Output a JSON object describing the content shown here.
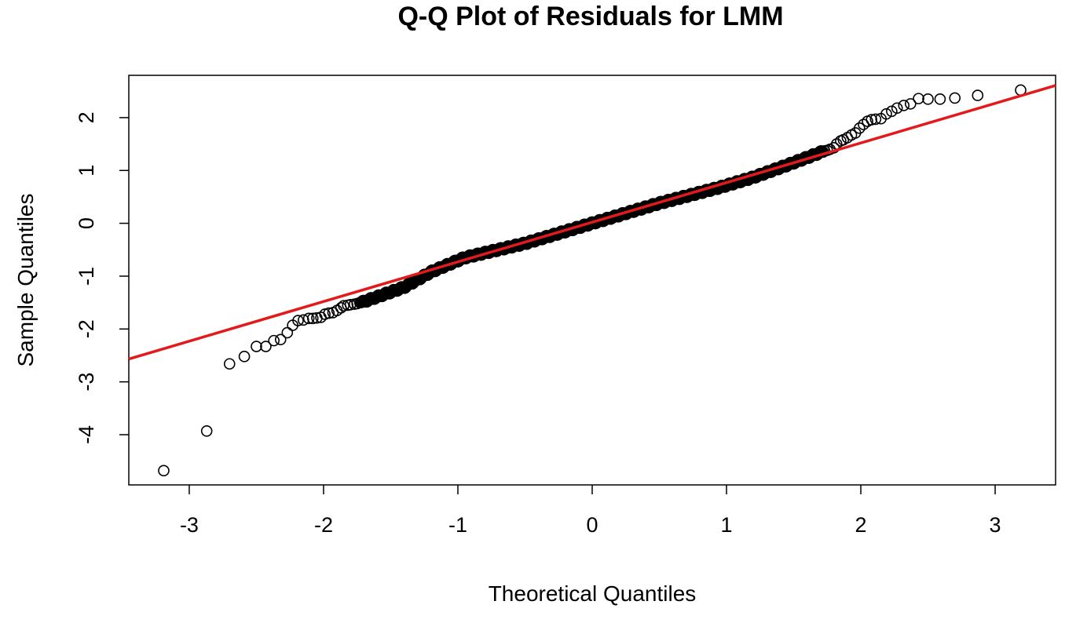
{
  "chart_data": {
    "type": "scatter",
    "title": "Q-Q Plot of Residuals for LMM",
    "xlabel": "Theoretical Quantiles",
    "ylabel": "Sample Quantiles",
    "x_ticks": [
      -3,
      -2,
      -1,
      0,
      1,
      2,
      3
    ],
    "x_tick_labels": [
      "-3",
      "-2",
      "-1",
      "0",
      "1",
      "2",
      "3"
    ],
    "y_ticks": [
      -4,
      -3,
      -2,
      -1,
      0,
      1,
      2
    ],
    "y_tick_labels": [
      "-4",
      "-3",
      "-2",
      "-1",
      "0",
      "1",
      "2"
    ],
    "xlim": [
      -3.45,
      3.45
    ],
    "ylim": [
      -4.95,
      2.8
    ],
    "grid": false,
    "marker_color": "#000000",
    "line_color": "#e31a1c",
    "reference_line": {
      "intercept": 0.02,
      "slope": 0.75
    },
    "tail_points": [
      [
        -3.19,
        -4.68
      ],
      [
        -2.87,
        -3.93
      ],
      [
        -2.7,
        -2.66
      ],
      [
        -2.59,
        -2.52
      ],
      [
        -2.5,
        -2.33
      ],
      [
        -2.43,
        -2.33
      ],
      [
        -2.37,
        -2.22
      ],
      [
        -2.32,
        -2.2
      ],
      [
        -2.27,
        -2.07
      ],
      [
        -2.23,
        -1.93
      ],
      [
        -2.19,
        -1.84
      ],
      [
        -2.15,
        -1.83
      ],
      [
        -2.11,
        -1.8
      ],
      [
        -2.08,
        -1.8
      ],
      [
        -2.05,
        -1.79
      ],
      [
        -2.02,
        -1.78
      ],
      [
        -1.99,
        -1.72
      ],
      [
        -1.96,
        -1.7
      ],
      [
        -1.93,
        -1.69
      ],
      [
        -1.9,
        -1.65
      ],
      [
        -1.87,
        -1.6
      ],
      [
        -1.85,
        -1.56
      ],
      [
        -1.82,
        -1.55
      ],
      [
        -1.8,
        -1.54
      ],
      [
        -1.77,
        -1.53
      ],
      [
        -1.75,
        -1.52
      ],
      [
        -1.73,
        -1.5
      ],
      [
        1.73,
        1.37
      ],
      [
        1.75,
        1.38
      ],
      [
        1.77,
        1.4
      ],
      [
        1.8,
        1.43
      ],
      [
        1.82,
        1.5
      ],
      [
        1.85,
        1.56
      ],
      [
        1.87,
        1.58
      ],
      [
        1.9,
        1.62
      ],
      [
        1.93,
        1.67
      ],
      [
        1.96,
        1.71
      ],
      [
        1.99,
        1.8
      ],
      [
        2.02,
        1.87
      ],
      [
        2.05,
        1.93
      ],
      [
        2.08,
        1.96
      ],
      [
        2.11,
        1.97
      ],
      [
        2.15,
        1.98
      ],
      [
        2.19,
        2.07
      ],
      [
        2.23,
        2.12
      ],
      [
        2.27,
        2.18
      ],
      [
        2.32,
        2.23
      ],
      [
        2.37,
        2.26
      ],
      [
        2.43,
        2.36
      ],
      [
        2.5,
        2.35
      ],
      [
        2.59,
        2.35
      ],
      [
        2.7,
        2.37
      ],
      [
        2.87,
        2.42
      ],
      [
        3.19,
        2.52
      ]
    ],
    "central_band": {
      "x_start": -1.72,
      "x_end": 1.72,
      "count": 900,
      "bow_points": [
        [
          -1.72,
          -1.5
        ],
        [
          -1.4,
          -1.21
        ],
        [
          -1.2,
          -0.92
        ],
        [
          -0.95,
          -0.65
        ],
        [
          -0.5,
          -0.38
        ],
        [
          0,
          0
        ],
        [
          0.5,
          0.38
        ],
        [
          0.95,
          0.68
        ],
        [
          1.2,
          0.87
        ],
        [
          1.45,
          1.1
        ],
        [
          1.72,
          1.36
        ]
      ]
    }
  }
}
